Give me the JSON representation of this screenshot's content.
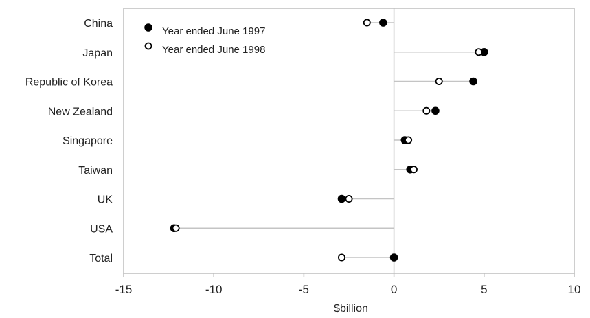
{
  "chart_data": {
    "type": "scatter",
    "title": "",
    "xlabel": "$billion",
    "ylabel": "",
    "xlim": [
      -15,
      10
    ],
    "xticks": [
      "-15",
      "-10",
      "-5",
      "0",
      "5",
      "10"
    ],
    "categories": [
      "China",
      "Japan",
      "Republic of Korea",
      "New Zealand",
      "Singapore",
      "Taiwan",
      "UK",
      "USA",
      "Total"
    ],
    "series": [
      {
        "name": "Year ended June 1997",
        "marker": "filled",
        "values": [
          -0.6,
          5.0,
          4.4,
          2.3,
          0.6,
          0.9,
          -2.9,
          -12.2,
          0.0
        ]
      },
      {
        "name": "Year ended June 1998",
        "marker": "open",
        "values": [
          -1.5,
          4.7,
          2.5,
          1.8,
          0.8,
          1.1,
          -2.5,
          -12.1,
          -2.9
        ]
      }
    ],
    "grid": false,
    "legend": "top-left",
    "colors": {
      "axis": "#bdbdbd",
      "connector": "#c4c4c4",
      "marker": "#000000",
      "text": "#222222"
    }
  }
}
